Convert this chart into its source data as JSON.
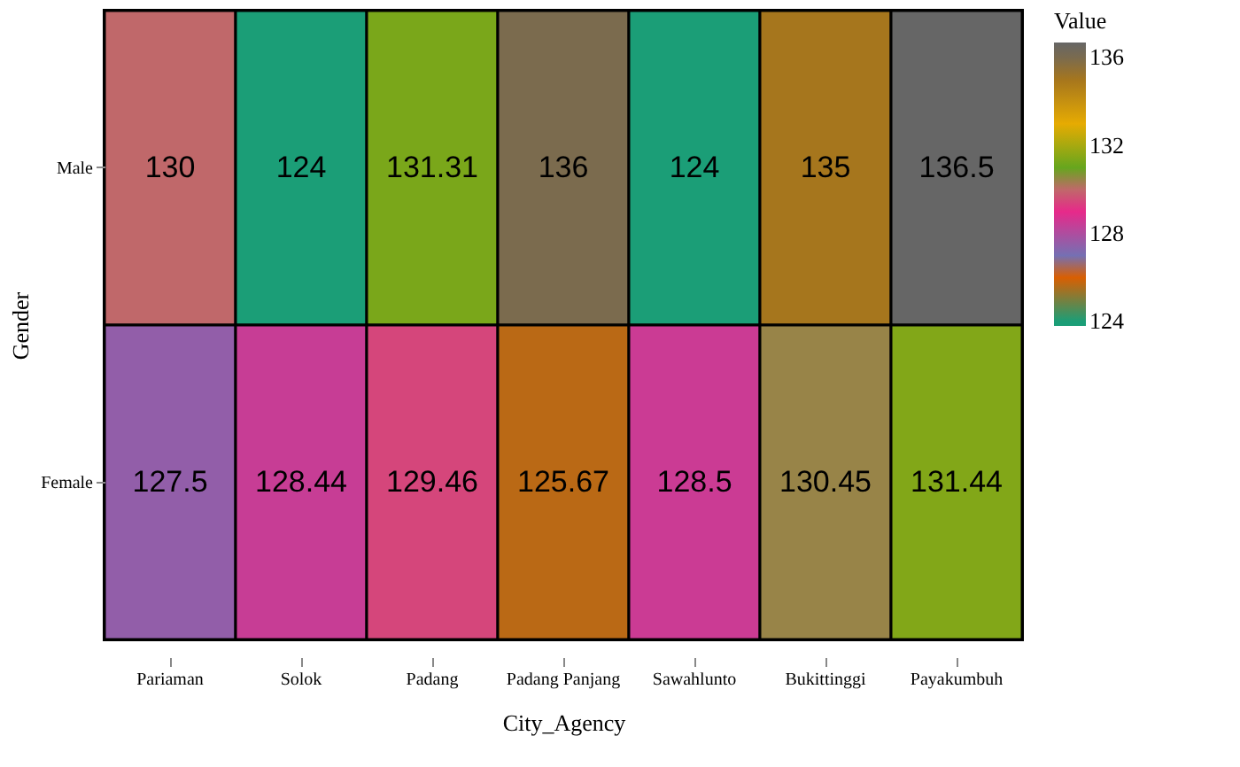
{
  "chart_data": {
    "type": "heatmap",
    "xlabel": "City_Agency",
    "ylabel": "Gender",
    "clabel": "Value",
    "categories": [
      "Pariaman",
      "Solok",
      "Padang",
      "Padang Panjang",
      "Sawahlunto",
      "Bukittinggi",
      "Payakumbuh"
    ],
    "y_categories": [
      "Male",
      "Female"
    ],
    "cells": [
      [
        130,
        124,
        131.31,
        136,
        124,
        135,
        136.5
      ],
      [
        127.5,
        128.44,
        129.46,
        125.67,
        128.5,
        130.45,
        131.44
      ]
    ],
    "clim": [
      123.8,
      136.7
    ],
    "cticks": [
      124,
      128,
      132,
      136
    ],
    "data_labels": true
  }
}
